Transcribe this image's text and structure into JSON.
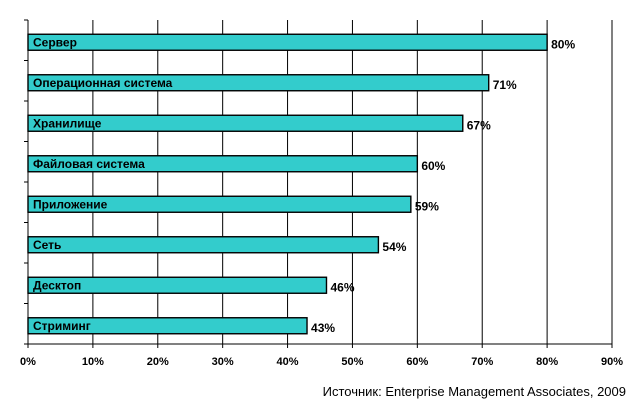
{
  "chart_data": {
    "type": "bar",
    "orientation": "horizontal",
    "categories": [
      "Сервер",
      "Операционная система",
      "Хранилище",
      "Файловая система",
      "Приложение",
      "Сеть",
      "Десктоп",
      "Стриминг"
    ],
    "values": [
      80,
      71,
      67,
      60,
      59,
      54,
      46,
      43
    ],
    "value_labels": [
      "80%",
      "71%",
      "67%",
      "60%",
      "59%",
      "54%",
      "46%",
      "43%"
    ],
    "x_ticks": [
      0,
      10,
      20,
      30,
      40,
      50,
      60,
      70,
      80,
      90
    ],
    "x_tick_labels": [
      "0%",
      "10%",
      "20%",
      "30%",
      "40%",
      "50%",
      "60%",
      "70%",
      "80%",
      "90%"
    ],
    "xlim": [
      0,
      90
    ],
    "grid": "vertical",
    "legend": "none",
    "bar_color": "#33cccc",
    "title": "",
    "xlabel": "",
    "ylabel": ""
  },
  "source_note": "Источник: Enterprise Management Associates, 2009"
}
